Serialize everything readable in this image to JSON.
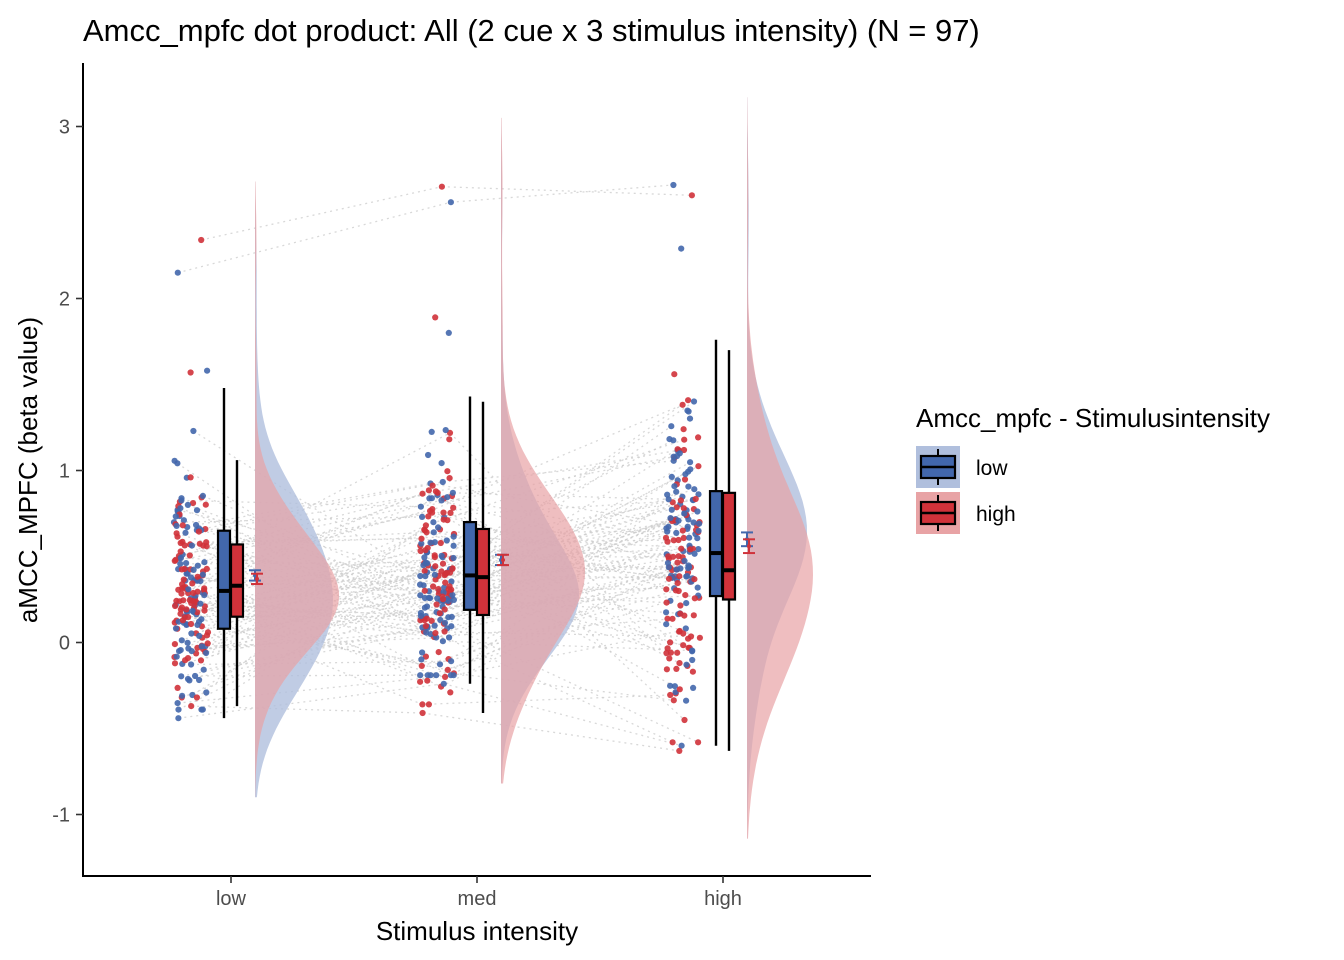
{
  "chart_data": {
    "type": "raincloud",
    "title": "Amcc_mpfc dot product: All (2 cue x 3 stimulus intensity) (N = 97)",
    "xlabel": "Stimulus intensity",
    "ylabel": "aMCC_MPFC  (beta value)",
    "categories": [
      "low",
      "med",
      "high"
    ],
    "ylim": [
      -1.35,
      3.35
    ],
    "yticks": [
      -1,
      0,
      1,
      2,
      3
    ],
    "ytick_labels": [
      "-1",
      "0",
      "1",
      "2",
      "3"
    ],
    "grid": false,
    "legend": {
      "title": "Amcc_mpfc - Stimulusintensity",
      "position": "right",
      "entries": [
        "low",
        "high"
      ]
    },
    "colors": {
      "low": "#4267ac",
      "high": "#d0323a",
      "low_fill": "#b0bfdd",
      "high_fill": "#e8a3a5",
      "overlap_fill": "#c39aa8",
      "connector": "#cccccc"
    },
    "series": [
      {
        "name": "low",
        "boxplot": [
          {
            "min": -0.44,
            "q1": 0.08,
            "median": 0.3,
            "q3": 0.65,
            "max": 1.48
          },
          {
            "min": -0.24,
            "q1": 0.19,
            "median": 0.39,
            "q3": 0.7,
            "max": 1.43
          },
          {
            "min": -0.6,
            "q1": 0.27,
            "median": 0.52,
            "q3": 0.88,
            "max": 1.76
          }
        ],
        "mean": [
          0.39,
          0.48,
          0.6
        ],
        "se": [
          0.03,
          0.03,
          0.04
        ],
        "extremes": [
          [
            2.15,
            1.58,
            -0.44
          ],
          [
            2.56,
            1.8,
            -0.24
          ],
          [
            2.66,
            2.29,
            -0.6
          ]
        ]
      },
      {
        "name": "high",
        "boxplot": [
          {
            "min": -0.37,
            "q1": 0.15,
            "median": 0.33,
            "q3": 0.57,
            "max": 1.06
          },
          {
            "min": -0.41,
            "q1": 0.16,
            "median": 0.38,
            "q3": 0.66,
            "max": 1.4
          },
          {
            "min": -0.63,
            "q1": 0.25,
            "median": 0.42,
            "q3": 0.87,
            "max": 1.7
          }
        ],
        "mean": [
          0.37,
          0.48,
          0.56
        ],
        "se": [
          0.03,
          0.03,
          0.04
        ],
        "extremes": [
          [
            2.34,
            1.57,
            -0.37
          ],
          [
            2.65,
            1.89,
            -0.41
          ],
          [
            2.6,
            1.56,
            -0.63
          ]
        ]
      }
    ],
    "n_subjects": 97
  }
}
